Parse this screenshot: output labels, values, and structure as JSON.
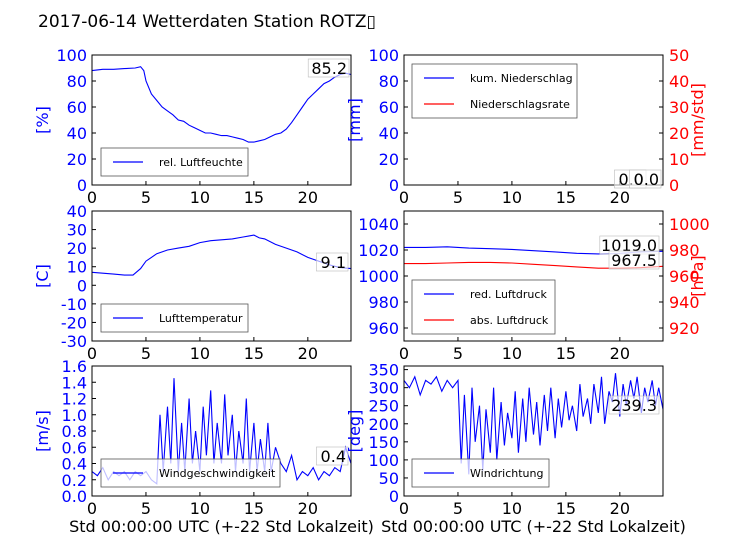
{
  "figure": {
    "title": "2017-06-14 Wetterdaten Station ROTZ▯"
  },
  "chart_data": [
    {
      "id": "humidity",
      "type": "line",
      "ylabel": "[%]",
      "ylim": [
        0,
        100
      ],
      "yticks": [
        0,
        20,
        40,
        60,
        80,
        100
      ],
      "xlim": [
        0,
        24
      ],
      "xticks": [
        0,
        5,
        10,
        15,
        20
      ],
      "xlabel": "",
      "grid": false,
      "legend": {
        "placement": "lower-left",
        "entries": [
          "rel. Luftfeuchte"
        ]
      },
      "annotations": [
        "85.2"
      ],
      "series": [
        {
          "name": "rel. Luftfeuchte",
          "color": "#0000ff",
          "x": [
            0,
            1,
            2,
            3,
            4,
            4.5,
            4.8,
            5,
            5.5,
            6,
            6.5,
            7,
            7.5,
            8,
            8.5,
            9,
            9.5,
            10,
            10.5,
            11,
            11.5,
            12,
            12.5,
            13,
            13.5,
            14,
            14.5,
            15,
            15.5,
            16,
            16.5,
            17,
            17.5,
            18,
            18.5,
            19,
            19.5,
            20,
            20.5,
            21,
            21.5,
            22,
            22.5,
            23,
            23.5,
            24
          ],
          "y": [
            88,
            89,
            89,
            89.5,
            90,
            91,
            88,
            80,
            70,
            65,
            60,
            57,
            54,
            50,
            49,
            46,
            44,
            42,
            40,
            40,
            39,
            38,
            38,
            37,
            36,
            35,
            33,
            33,
            34,
            35,
            37,
            39,
            40,
            43,
            48,
            54,
            60,
            66,
            70,
            74,
            78,
            80,
            83,
            85,
            86,
            85
          ]
        }
      ]
    },
    {
      "id": "precipitation",
      "type": "line",
      "ylabel": "[mm]",
      "ylabel_right": "[mm/std]",
      "ylim": [
        0,
        100
      ],
      "yticks": [
        0,
        20,
        40,
        60,
        80,
        100
      ],
      "ylim_right": [
        0,
        50
      ],
      "yticks_right": [
        0,
        10,
        20,
        30,
        40,
        50
      ],
      "xlim": [
        0,
        24
      ],
      "xticks": [
        0,
        5,
        10,
        15,
        20
      ],
      "xlabel": "",
      "grid": false,
      "legend": {
        "placement": "upper-left",
        "entries": [
          "kum. Niederschlag",
          "Niederschlagsrate"
        ]
      },
      "annotations": [
        "0.0",
        "0.0"
      ],
      "series": [
        {
          "name": "kum. Niederschlag",
          "color": "#0000ff",
          "axis": "left",
          "x": [
            0,
            24
          ],
          "y": [
            0,
            0
          ]
        },
        {
          "name": "Niederschlagsrate",
          "color": "#ff0000",
          "axis": "right",
          "x": [
            0,
            24
          ],
          "y": [
            0,
            0
          ]
        }
      ]
    },
    {
      "id": "temperature",
      "type": "line",
      "ylabel": "[C]",
      "ylim": [
        -30,
        40
      ],
      "yticks": [
        -30,
        -20,
        -10,
        0,
        10,
        20,
        30,
        40
      ],
      "xlim": [
        0,
        24
      ],
      "xticks": [
        0,
        5,
        10,
        15,
        20
      ],
      "xlabel": "",
      "grid": false,
      "legend": {
        "placement": "lower-left",
        "entries": [
          "Lufttemperatur"
        ]
      },
      "annotations": [
        "9.1"
      ],
      "series": [
        {
          "name": "Lufttemperatur",
          "color": "#0000ff",
          "x": [
            0,
            1,
            2,
            3,
            3.8,
            4.5,
            5,
            5.5,
            6,
            7,
            8,
            9,
            10,
            11,
            12,
            13,
            14,
            14.5,
            15,
            15.5,
            16,
            17,
            18,
            19,
            20,
            21,
            22,
            23,
            24
          ],
          "y": [
            7,
            6.5,
            6,
            5.5,
            5.5,
            9,
            13,
            15,
            17,
            19,
            20,
            21,
            23,
            24,
            24.5,
            25,
            26,
            26.5,
            27,
            25.5,
            25,
            22,
            20,
            18,
            15,
            13,
            11,
            9.5,
            9
          ]
        }
      ]
    },
    {
      "id": "pressure",
      "type": "line",
      "ylabel_right": "[hPa]",
      "ylim": [
        950,
        1050
      ],
      "yticks": [
        960,
        980,
        1000,
        1020,
        1040
      ],
      "ylim_right": [
        910,
        1010
      ],
      "yticks_right": [
        920,
        940,
        960,
        980,
        1000
      ],
      "xlim": [
        0,
        24
      ],
      "xticks": [
        0,
        5,
        10,
        15,
        20
      ],
      "xlabel": "",
      "grid": false,
      "legend": {
        "placement": "lower-left",
        "entries": [
          "red. Luftdruck",
          "abs. Luftdruck"
        ]
      },
      "annotations": [
        "1019.0",
        "967.5"
      ],
      "series": [
        {
          "name": "red. Luftdruck",
          "color": "#0000ff",
          "axis": "left",
          "x": [
            0,
            2,
            4,
            6,
            8,
            10,
            12,
            14,
            16,
            18,
            20,
            22,
            24
          ],
          "y": [
            1022,
            1022,
            1022.5,
            1021.5,
            1021,
            1020.5,
            1019.5,
            1018.5,
            1017.5,
            1017,
            1017.5,
            1018.5,
            1019
          ]
        },
        {
          "name": "abs. Luftdruck",
          "color": "#ff0000",
          "axis": "right",
          "x": [
            0,
            2,
            4,
            6,
            8,
            10,
            12,
            14,
            16,
            18,
            20,
            22,
            24
          ],
          "y": [
            969.5,
            969.5,
            970,
            970.5,
            970.5,
            970,
            969,
            968,
            967,
            966,
            966,
            966.5,
            967.5
          ]
        }
      ]
    },
    {
      "id": "windspeed",
      "type": "line",
      "ylabel": "[m/s]",
      "ylim": [
        0,
        1.6
      ],
      "yticks": [
        0.0,
        0.2,
        0.4,
        0.6,
        0.8,
        1.0,
        1.2,
        1.4,
        1.6
      ],
      "xlim": [
        0,
        24
      ],
      "xticks": [
        0,
        5,
        10,
        15,
        20
      ],
      "xlabel": "Std 00:00:00 UTC (+-22 Std Lokalzeit)",
      "grid": false,
      "legend": {
        "placement": "lower-left",
        "entries": [
          "Windgeschwindigkeit"
        ]
      },
      "annotations": [
        "0.4"
      ],
      "series": [
        {
          "name": "Windgeschwindigkeit",
          "color": "#0000ff",
          "x": [
            0,
            0.5,
            1,
            1.5,
            2,
            2.5,
            3,
            3.5,
            4,
            4.5,
            5,
            5.5,
            6,
            6.3,
            6.6,
            7,
            7.3,
            7.6,
            8,
            8.3,
            8.6,
            9,
            9.3,
            9.6,
            10,
            10.3,
            10.6,
            11,
            11.3,
            11.6,
            12,
            12.3,
            12.6,
            13,
            13.3,
            13.6,
            14,
            14.3,
            14.6,
            15,
            15.3,
            15.6,
            16,
            16.3,
            16.6,
            17,
            17.5,
            18,
            18.5,
            19,
            19.5,
            20,
            20.5,
            21,
            21.5,
            22,
            22.5,
            23,
            23.5,
            24
          ],
          "y": [
            0.3,
            0.25,
            0.35,
            0.2,
            0.3,
            0.25,
            0.3,
            0.2,
            0.3,
            0.25,
            0.3,
            0.2,
            0.15,
            1.0,
            0.3,
            1.1,
            0.4,
            1.45,
            0.3,
            0.9,
            0.3,
            1.2,
            0.4,
            0.8,
            0.3,
            1.1,
            0.5,
            1.3,
            0.4,
            0.9,
            0.4,
            1.25,
            0.5,
            1.0,
            0.3,
            0.8,
            0.4,
            1.2,
            0.3,
            0.9,
            0.3,
            0.7,
            0.3,
            0.9,
            0.3,
            0.6,
            0.4,
            0.3,
            0.5,
            0.2,
            0.3,
            0.25,
            0.35,
            0.2,
            0.3,
            0.25,
            0.35,
            0.3,
            0.6,
            0.4
          ]
        }
      ]
    },
    {
      "id": "winddirection",
      "type": "line",
      "ylabel": "[deg]",
      "ylim": [
        0,
        360
      ],
      "yticks": [
        0,
        50,
        100,
        150,
        200,
        250,
        300,
        350
      ],
      "xlim": [
        0,
        24
      ],
      "xticks": [
        0,
        5,
        10,
        15,
        20
      ],
      "xlabel": "Std 00:00:00 UTC (+-22 Std Lokalzeit)",
      "grid": false,
      "legend": {
        "placement": "lower-left",
        "entries": [
          "Windrichtung"
        ]
      },
      "annotations": [
        "239.3"
      ],
      "series": [
        {
          "name": "Windrichtung",
          "color": "#0000ff",
          "x": [
            0,
            0.5,
            1,
            1.5,
            2,
            2.5,
            3,
            3.5,
            4,
            4.5,
            5,
            5.3,
            5.6,
            6,
            6.3,
            6.6,
            7,
            7.3,
            7.6,
            8,
            8.3,
            8.6,
            9,
            9.3,
            9.6,
            10,
            10.3,
            10.6,
            11,
            11.3,
            11.6,
            12,
            12.3,
            12.6,
            13,
            13.3,
            13.6,
            14,
            14.3,
            14.6,
            15,
            15.3,
            15.6,
            16,
            16.3,
            16.6,
            17,
            17.3,
            17.6,
            18,
            18.3,
            18.6,
            19,
            19.3,
            19.6,
            20,
            20.3,
            20.6,
            21,
            21.3,
            21.6,
            22,
            22.3,
            22.6,
            23,
            23.3,
            23.6,
            24
          ],
          "y": [
            320,
            300,
            330,
            280,
            320,
            310,
            330,
            290,
            320,
            300,
            320,
            90,
            280,
            60,
            300,
            150,
            250,
            70,
            240,
            120,
            300,
            100,
            260,
            140,
            230,
            160,
            290,
            120,
            270,
            150,
            300,
            170,
            260,
            140,
            280,
            180,
            300,
            160,
            270,
            190,
            290,
            210,
            250,
            180,
            310,
            220,
            270,
            200,
            310,
            230,
            330,
            200,
            290,
            260,
            340,
            220,
            310,
            250,
            320,
            270,
            330,
            230,
            300,
            260,
            320,
            250,
            300,
            240
          ]
        }
      ]
    }
  ]
}
